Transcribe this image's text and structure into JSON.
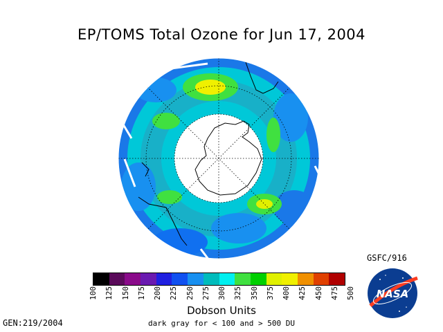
{
  "title": "EP/TOMS Total Ozone for Jun 17, 2004",
  "colorbar": {
    "labels": [
      "100",
      "125",
      "150",
      "175",
      "200",
      "225",
      "250",
      "275",
      "300",
      "325",
      "350",
      "375",
      "400",
      "425",
      "450",
      "475",
      "500"
    ],
    "colors": [
      "#000000",
      "#5a0a5a",
      "#8a0a8a",
      "#6a1ab0",
      "#2020e0",
      "#1050f0",
      "#1890f0",
      "#00bcbc",
      "#00f0f0",
      "#40e040",
      "#00d000",
      "#e0f000",
      "#f0f000",
      "#f09000",
      "#e04000",
      "#b00000",
      "#601010",
      "#2a1a1a"
    ]
  },
  "units": "Dobson Units",
  "note": "dark gray for < 100 and > 500 DU",
  "gen": "GEN:219/2004",
  "gsfc": "GSFC/916",
  "logo_text": "NASA"
}
